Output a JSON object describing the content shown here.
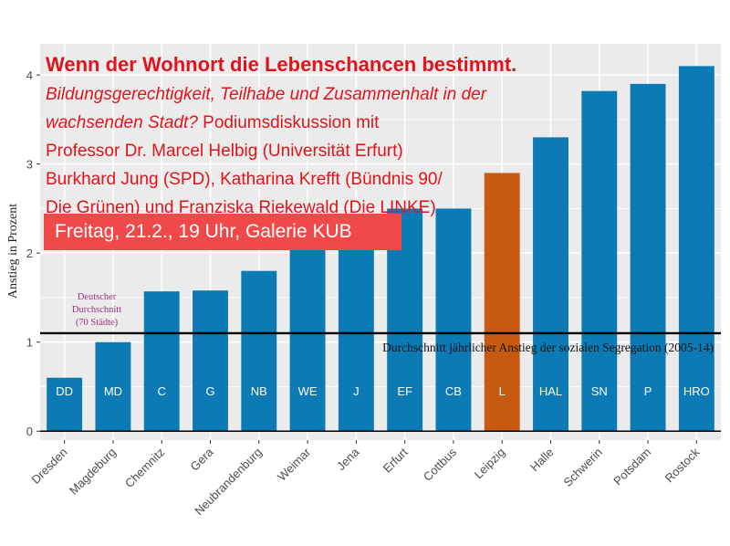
{
  "colors": {
    "panel": "#ebebeb",
    "grid": "#ffffff",
    "bar": "#0b7ab5",
    "highlight": "#c65a11",
    "text_red": "#e0141c",
    "event_bg": "#f0494a",
    "axis_text": "#4d4d4d",
    "avg_line": "#000000"
  },
  "overlay": {
    "title": "Wenn der Wohnort die Lebenschancen bestimmt.",
    "line1": "Bildungsgerechtigkeit, Teilhabe und Zusammenhalt in der",
    "line2_italic": "wachsenden Stadt?",
    "line2_rest": " Podiumsdiskussion mit",
    "line3": "Professor Dr. Marcel Helbig (Universität Erfurt)",
    "line4": "Burkhard Jung (SPD), Katharina Krefft (Bündnis 90/",
    "line5": "Die Grünen) und Franziska Riekewald (Die LINKE)",
    "event": "Freitag, 21.2., 19 Uhr, Galerie KUB"
  },
  "chart_data": {
    "type": "bar",
    "categories": [
      "Dresden",
      "Magdeburg",
      "Chemnitz",
      "Gera",
      "Neubrandenburg",
      "Weimar",
      "Jena",
      "Erfurt",
      "Cottbus",
      "Leipzig",
      "Halle",
      "Schwerin",
      "Potsdam",
      "Rostock"
    ],
    "bar_labels": [
      "DD",
      "MD",
      "C",
      "G",
      "NB",
      "WE",
      "J",
      "EF",
      "CB",
      "L",
      "HAL",
      "SN",
      "P",
      "HRO"
    ],
    "values": [
      0.6,
      1.0,
      1.57,
      1.58,
      1.8,
      2.1,
      2.3,
      2.5,
      2.5,
      2.9,
      3.3,
      3.82,
      3.9,
      4.1
    ],
    "highlight_category": "Leipzig",
    "ylabel": "Anstieg in Prozent",
    "yticks": [
      0,
      1,
      2,
      3,
      4
    ],
    "ylim": [
      -0.1,
      4.35
    ],
    "reference_line": {
      "value": 1.1,
      "label": "Durchschnitt jährlicher Anstieg der sozialen Segregation (2005-14)",
      "side_label": [
        "Deutscher",
        "Durchschnitt",
        "(70 Städte)"
      ]
    },
    "grid": true
  }
}
